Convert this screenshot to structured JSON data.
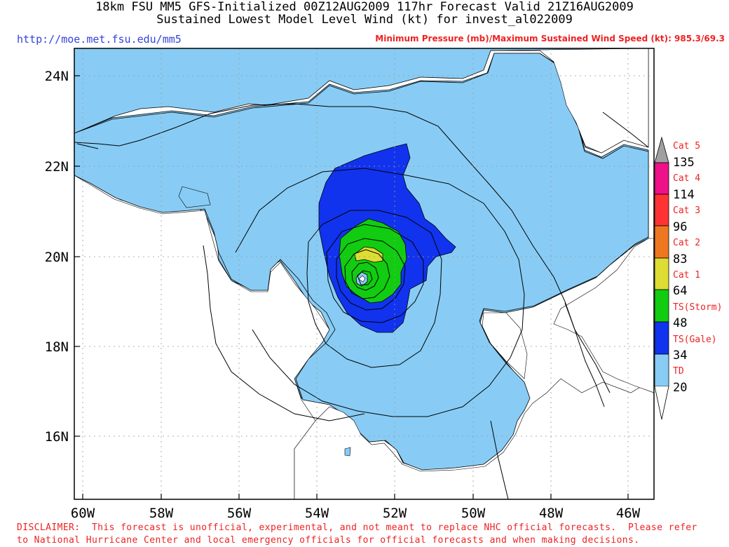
{
  "header": {
    "title_line1": "18km FSU MM5 GFS-Initialized 00Z12AUG2009 117hr Forecast Valid 21Z16AUG2009",
    "title_line2": "Sustained Lowest Model Level Wind (kt) for invest_al022009",
    "url": "http://moe.met.fsu.edu/mm5",
    "min_max": "Minimum Pressure (mb)/Maximum Sustained Wind Speed (kt): 985.3/69.3"
  },
  "axes": {
    "x_ticks": [
      "60W",
      "58W",
      "56W",
      "54W",
      "52W",
      "50W",
      "48W",
      "46W"
    ],
    "y_ticks": [
      "24N",
      "22N",
      "20N",
      "18N",
      "16N"
    ]
  },
  "legend": {
    "categories": [
      {
        "label": "Cat 5",
        "value": "135",
        "color": "#a0a0a0"
      },
      {
        "label": "Cat 4",
        "value": "114",
        "color": "#ee1188"
      },
      {
        "label": "Cat 3",
        "value": "96",
        "color": "#ff3333"
      },
      {
        "label": "Cat 2",
        "value": "83",
        "color": "#ee7722"
      },
      {
        "label": "Cat 1",
        "value": "64",
        "color": "#dddd33"
      },
      {
        "label": "TS(Storm)",
        "value": "48",
        "color": "#11cc11"
      },
      {
        "label": "TS(Gale)",
        "value": "34",
        "color": "#1133ee"
      },
      {
        "label": "TD",
        "value": "20",
        "color": "#88ccf5"
      }
    ]
  },
  "colors": {
    "td": "#88ccf5",
    "gale": "#1133ee",
    "storm": "#11cc11",
    "cat1": "#dddd33",
    "label_red": "#ee2222",
    "url_blue": "#3344dd"
  },
  "disclaimer": {
    "line1": "DISCLAIMER:  This forecast is unofficial, experimental, and not meant to replace NHC official forecasts.  Please refer",
    "line2": "to National Hurricane Center and local emergency officials for official forecasts and when making decisions."
  }
}
